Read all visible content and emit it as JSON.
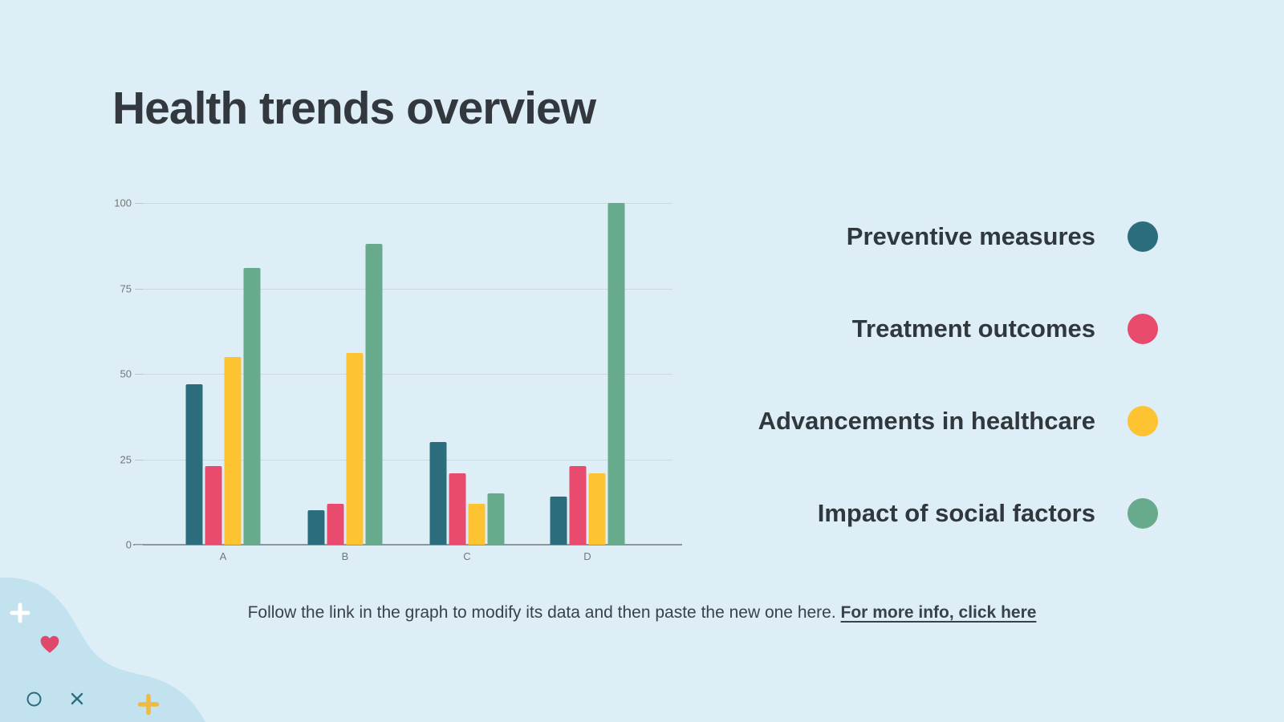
{
  "slide": {
    "title": "Health trends overview",
    "background_color": "#ddeef7",
    "blob_color": "#c3e2ef"
  },
  "footer": {
    "text": "Follow the link in the graph to modify its data and then paste the new one here. ",
    "link_text": "For more info, click here"
  },
  "legend": {
    "position": "right",
    "items": [
      {
        "label": "Preventive measures",
        "color": "#2b6d7c",
        "icon": "teal-circle-swatch"
      },
      {
        "label": "Treatment outcomes",
        "color": "#e94b6e",
        "icon": "pink-circle-swatch"
      },
      {
        "label": "Advancements in healthcare",
        "color": "#fdc330",
        "icon": "yellow-circle-swatch"
      },
      {
        "label": "Impact of social factors",
        "color": "#68aa8c",
        "icon": "green-circle-swatch"
      }
    ]
  },
  "chart_data": {
    "type": "bar",
    "title": "Health trends overview",
    "categories": [
      "A",
      "B",
      "C",
      "D"
    ],
    "series": [
      {
        "name": "Preventive measures",
        "color": "#2b6d7c",
        "values": [
          47,
          10,
          30,
          14
        ]
      },
      {
        "name": "Treatment outcomes",
        "color": "#e94b6e",
        "values": [
          23,
          12,
          21,
          23
        ]
      },
      {
        "name": "Advancements in healthcare",
        "color": "#fdc330",
        "values": [
          55,
          56,
          12,
          21
        ]
      },
      {
        "name": "Impact of social factors",
        "color": "#68aa8c",
        "values": [
          81,
          88,
          15,
          100
        ]
      }
    ],
    "xlabel": "",
    "ylabel": "",
    "ylim": [
      0,
      100
    ],
    "yticks": [
      0,
      25,
      50,
      75,
      100
    ],
    "grid": true,
    "legend_position": "right"
  },
  "decor": {
    "icons": [
      {
        "name": "plus-icon",
        "color": "#ffffff"
      },
      {
        "name": "heart-icon",
        "color": "#e0486b"
      },
      {
        "name": "circle-icon",
        "color": "#2b6d7c"
      },
      {
        "name": "x-icon",
        "color": "#2b6d7c"
      },
      {
        "name": "plus-icon",
        "color": "#eeb944"
      }
    ]
  }
}
